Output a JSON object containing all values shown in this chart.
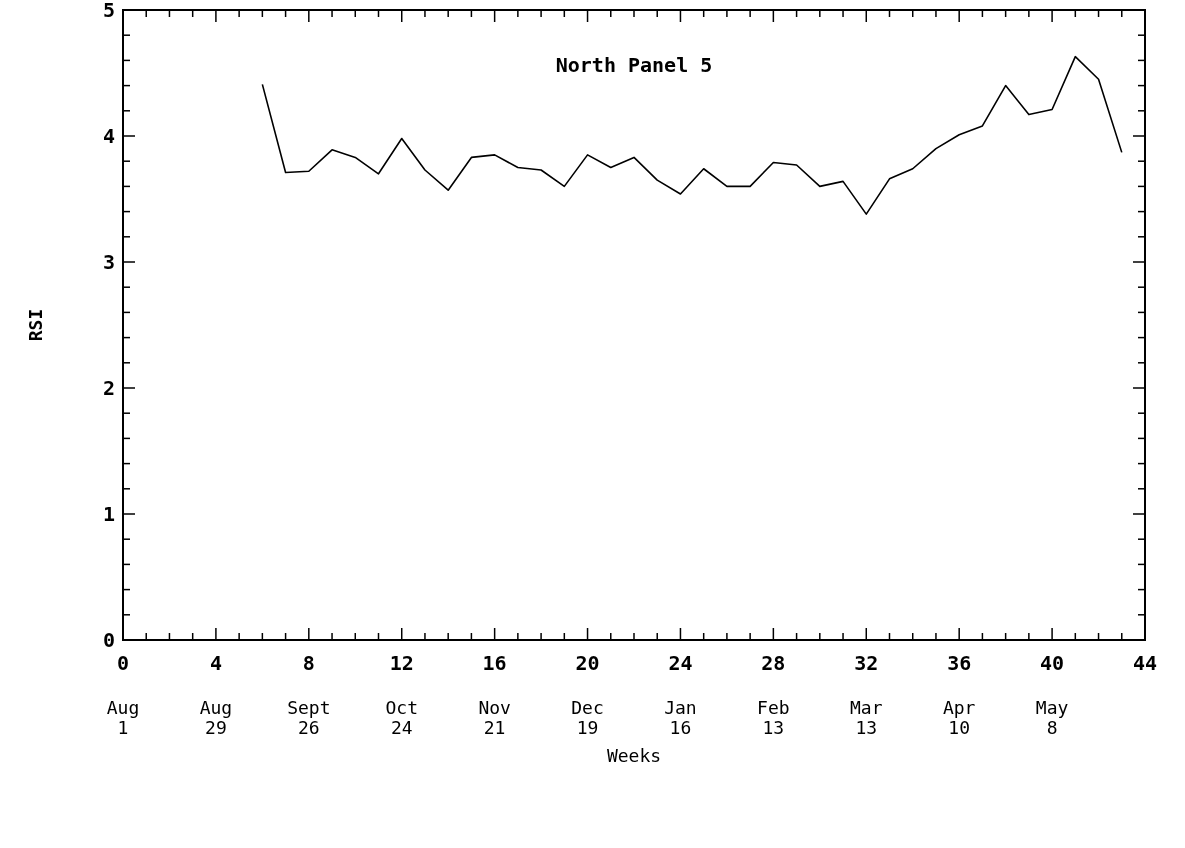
{
  "chart_data": {
    "type": "line",
    "title": "North Panel  5",
    "xlabel": "Weeks",
    "ylabel": "RSI",
    "x": [
      6,
      7,
      8,
      9,
      10,
      11,
      12,
      13,
      14,
      15,
      16,
      17,
      18,
      19,
      20,
      21,
      22,
      23,
      24,
      25,
      26,
      27,
      28,
      29,
      30,
      31,
      32,
      33,
      34,
      35,
      36,
      37,
      38,
      39,
      40,
      41,
      42,
      43
    ],
    "series": [
      {
        "color": "#000000",
        "values": [
          4.41,
          3.71,
          3.72,
          3.89,
          3.83,
          3.7,
          3.98,
          3.73,
          3.57,
          3.83,
          3.85,
          3.75,
          3.73,
          3.6,
          3.85,
          3.75,
          3.83,
          3.65,
          3.54,
          3.74,
          3.6,
          3.6,
          3.79,
          3.77,
          3.6,
          3.64,
          3.38,
          3.66,
          3.74,
          3.9,
          4.01,
          4.08,
          4.4,
          4.17,
          4.21,
          4.63,
          4.45,
          3.87
        ]
      }
    ],
    "xlim": [
      0,
      44
    ],
    "annotations": [
      "Aug\n1",
      "Aug\n29",
      "Sept\n26",
      "Oct\n24",
      "Nov\n21",
      "Dec\n19",
      "Jan\n16",
      "Feb\n13",
      "Mar\n13",
      "Apr\n10",
      "May\n8"
    ],
    "xticks": [
      0,
      {
        "value": 1,
        "label": null
      },
      {
        "value": 2,
        "label": null
      },
      {
        "value": 3,
        "label": null
      },
      4,
      {
        "value": 5,
        "label": null
      },
      {
        "value": 6,
        "label": null
      },
      {
        "value": 7,
        "label": null
      },
      8,
      {
        "value": 9,
        "label": null
      },
      {
        "value": 10,
        "label": null
      },
      {
        "value": 11,
        "label": null
      },
      12,
      {
        "value": 13,
        "label": null
      },
      {
        "value": 14,
        "label": null
      },
      {
        "value": 15,
        "label": null
      },
      16,
      {
        "value": 17,
        "label": null
      },
      {
        "value": 18,
        "label": null
      },
      {
        "value": 19,
        "label": null
      },
      20,
      {
        "value": 21,
        "label": null
      },
      {
        "value": 22,
        "label": null
      },
      {
        "value": 23,
        "label": null
      },
      24,
      {
        "value": 25,
        "label": null
      },
      {
        "value": 26,
        "label": null
      },
      {
        "value": 27,
        "label": null
      },
      28,
      {
        "value": 29,
        "label": null
      },
      {
        "value": 30,
        "label": null
      },
      {
        "value": 31,
        "label": null
      },
      32,
      {
        "value": 33,
        "label": null
      },
      {
        "value": 34,
        "label": null
      },
      {
        "value": 35,
        "label": null
      },
      36,
      {
        "value": 37,
        "label": null
      },
      {
        "value": 38,
        "label": null
      },
      {
        "value": 39,
        "label": null
      },
      40,
      {
        "value": 41,
        "label": null
      },
      {
        "value": 42,
        "label": null
      },
      {
        "value": 43,
        "label": null
      },
      44
    ],
    "ylim": [
      0,
      5
    ],
    "yticks": [
      0,
      {
        "value": 0.2,
        "label": null
      },
      {
        "value": 0.4,
        "label": null
      },
      {
        "value": 0.6,
        "label": null
      },
      {
        "value": 0.8,
        "label": null
      },
      1,
      {
        "value": 1.2,
        "label": null
      },
      {
        "value": 1.4,
        "label": null
      },
      {
        "value": 1.6,
        "label": null
      },
      {
        "value": 1.8,
        "label": null
      },
      2,
      {
        "value": 2.2,
        "label": null
      },
      {
        "value": 2.4,
        "label": null
      },
      {
        "value": 2.6,
        "label": null
      },
      {
        "value": 2.8,
        "label": null
      },
      3,
      {
        "value": 3.2,
        "label": null
      },
      {
        "value": 3.4,
        "label": null
      },
      {
        "value": 3.6,
        "label": null
      },
      {
        "value": 3.8,
        "label": null
      },
      4,
      {
        "value": 4.2,
        "label": null
      },
      {
        "value": 4.4,
        "label": null
      },
      {
        "value": 4.6,
        "label": null
      },
      {
        "value": 4.8,
        "label": null
      },
      5
    ],
    "grid": false,
    "marker": "none",
    "line_style": "solid"
  }
}
